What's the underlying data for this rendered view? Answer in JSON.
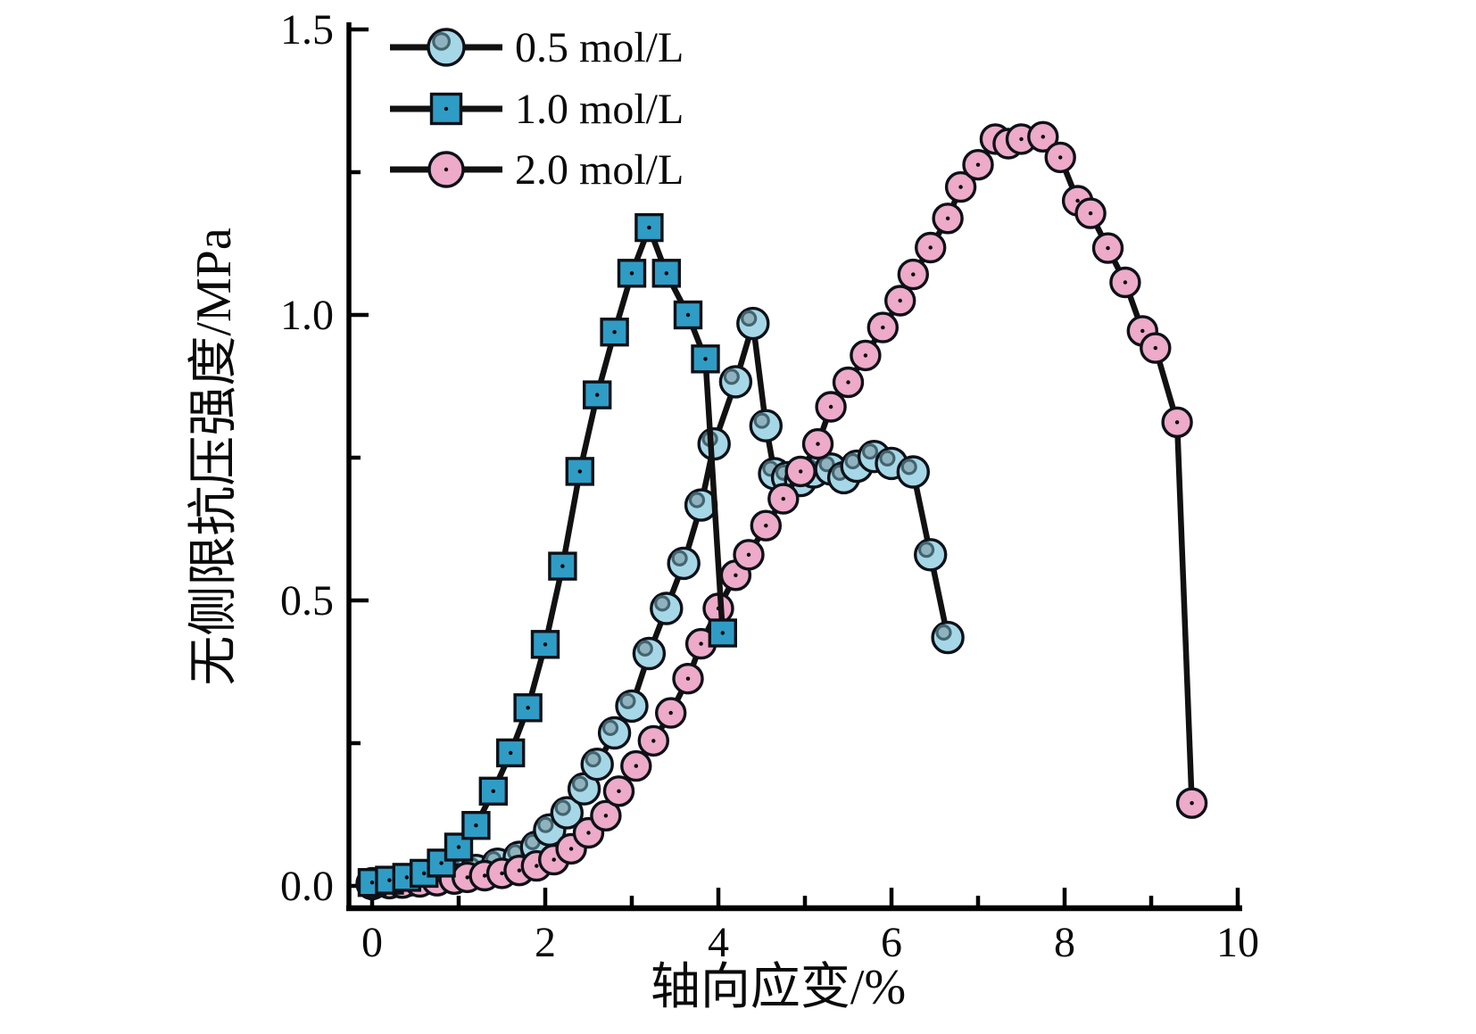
{
  "figure": {
    "background": "#ffffff",
    "line_color": "#111111",
    "axis_color": "#000000"
  },
  "legend": {
    "position": "top-left",
    "items": [
      {
        "label": "0.5 mol/L",
        "marker": "sphere-circle-icon"
      },
      {
        "label": "1.0 mol/L",
        "marker": "square-icon"
      },
      {
        "label": "2.0 mol/L",
        "marker": "circle-icon"
      }
    ]
  },
  "chart_data": {
    "type": "line",
    "title": "",
    "xlabel": "轴向应变/%",
    "ylabel": "无侧限抗压强度/MPa",
    "xlim": [
      -0.27,
      10.05
    ],
    "ylim": [
      -0.04,
      1.51
    ],
    "x_major_ticks": [
      0,
      2,
      4,
      6,
      8,
      10
    ],
    "x_minor_ticks": [
      1,
      3,
      5,
      7,
      9
    ],
    "x_tick_labels": [
      "0",
      "2",
      "4",
      "6",
      "8",
      "10"
    ],
    "y_major_ticks": [
      0,
      0.5,
      1.0,
      1.5
    ],
    "y_minor_ticks": [
      0.25,
      0.75,
      1.25
    ],
    "y_tick_labels": [
      "0.0",
      "0.5",
      "1.0",
      "1.5"
    ],
    "grid": false,
    "legend_position": "top-left",
    "series": [
      {
        "name": "0.5 mol/L",
        "marker": "sphere",
        "color": "#a6d7e7",
        "sphere_inner_fill": "#8fb3be",
        "sphere_inner_stroke": "#43646f",
        "points": [
          [
            0.0,
            0.004
          ],
          [
            0.2,
            0.006
          ],
          [
            0.4,
            0.009
          ],
          [
            0.6,
            0.012
          ],
          [
            0.8,
            0.016
          ],
          [
            1.0,
            0.021
          ],
          [
            1.2,
            0.027
          ],
          [
            1.45,
            0.038
          ],
          [
            1.7,
            0.05
          ],
          [
            1.9,
            0.068
          ],
          [
            2.05,
            0.098
          ],
          [
            2.25,
            0.128
          ],
          [
            2.45,
            0.17
          ],
          [
            2.6,
            0.213
          ],
          [
            2.8,
            0.268
          ],
          [
            3.0,
            0.315
          ],
          [
            3.2,
            0.407
          ],
          [
            3.4,
            0.486
          ],
          [
            3.6,
            0.565
          ],
          [
            3.8,
            0.667
          ],
          [
            3.95,
            0.774
          ],
          [
            4.2,
            0.883
          ],
          [
            4.4,
            0.985
          ],
          [
            4.55,
            0.806
          ],
          [
            4.65,
            0.722
          ],
          [
            4.8,
            0.715
          ],
          [
            4.95,
            0.71
          ],
          [
            5.1,
            0.725
          ],
          [
            5.3,
            0.73
          ],
          [
            5.45,
            0.715
          ],
          [
            5.6,
            0.735
          ],
          [
            5.8,
            0.752
          ],
          [
            6.0,
            0.74
          ],
          [
            6.25,
            0.725
          ],
          [
            6.45,
            0.58
          ],
          [
            6.65,
            0.435
          ]
        ]
      },
      {
        "name": "1.0 mol/L",
        "marker": "square",
        "color": "#2f9cc5",
        "points": [
          [
            0.0,
            0.006
          ],
          [
            0.2,
            0.01
          ],
          [
            0.4,
            0.015
          ],
          [
            0.6,
            0.022
          ],
          [
            0.8,
            0.04
          ],
          [
            1.0,
            0.068
          ],
          [
            1.2,
            0.106
          ],
          [
            1.4,
            0.166
          ],
          [
            1.6,
            0.233
          ],
          [
            1.8,
            0.312
          ],
          [
            2.0,
            0.423
          ],
          [
            2.2,
            0.56
          ],
          [
            2.4,
            0.726
          ],
          [
            2.6,
            0.86
          ],
          [
            2.8,
            0.97
          ],
          [
            3.0,
            1.073
          ],
          [
            3.2,
            1.153
          ],
          [
            3.4,
            1.073
          ],
          [
            3.65,
            1.0
          ],
          [
            3.85,
            0.923
          ],
          [
            4.05,
            0.443
          ]
        ]
      },
      {
        "name": "2.0 mol/L",
        "marker": "circle",
        "color": "#edaac9",
        "points": [
          [
            0.0,
            0.003
          ],
          [
            0.2,
            0.004
          ],
          [
            0.35,
            0.005
          ],
          [
            0.55,
            0.007
          ],
          [
            0.75,
            0.009
          ],
          [
            0.95,
            0.012
          ],
          [
            1.1,
            0.015
          ],
          [
            1.3,
            0.018
          ],
          [
            1.5,
            0.022
          ],
          [
            1.7,
            0.027
          ],
          [
            1.9,
            0.035
          ],
          [
            2.1,
            0.046
          ],
          [
            2.3,
            0.065
          ],
          [
            2.5,
            0.093
          ],
          [
            2.7,
            0.123
          ],
          [
            2.85,
            0.166
          ],
          [
            3.05,
            0.21
          ],
          [
            3.25,
            0.254
          ],
          [
            3.45,
            0.303
          ],
          [
            3.65,
            0.363
          ],
          [
            3.8,
            0.424
          ],
          [
            4.0,
            0.486
          ],
          [
            4.2,
            0.544
          ],
          [
            4.35,
            0.58
          ],
          [
            4.55,
            0.631
          ],
          [
            4.75,
            0.678
          ],
          [
            4.95,
            0.726
          ],
          [
            5.15,
            0.774
          ],
          [
            5.3,
            0.839
          ],
          [
            5.5,
            0.882
          ],
          [
            5.7,
            0.929
          ],
          [
            5.9,
            0.978
          ],
          [
            6.1,
            1.025
          ],
          [
            6.25,
            1.071
          ],
          [
            6.45,
            1.118
          ],
          [
            6.65,
            1.169
          ],
          [
            6.8,
            1.224
          ],
          [
            7.0,
            1.263
          ],
          [
            7.2,
            1.308
          ],
          [
            7.35,
            1.3
          ],
          [
            7.5,
            1.308
          ],
          [
            7.75,
            1.312
          ],
          [
            7.95,
            1.276
          ],
          [
            8.15,
            1.2
          ],
          [
            8.3,
            1.178
          ],
          [
            8.5,
            1.117
          ],
          [
            8.7,
            1.057
          ],
          [
            8.9,
            0.972
          ],
          [
            9.05,
            0.942
          ],
          [
            9.3,
            0.812
          ],
          [
            9.47,
            0.145
          ]
        ]
      }
    ]
  }
}
